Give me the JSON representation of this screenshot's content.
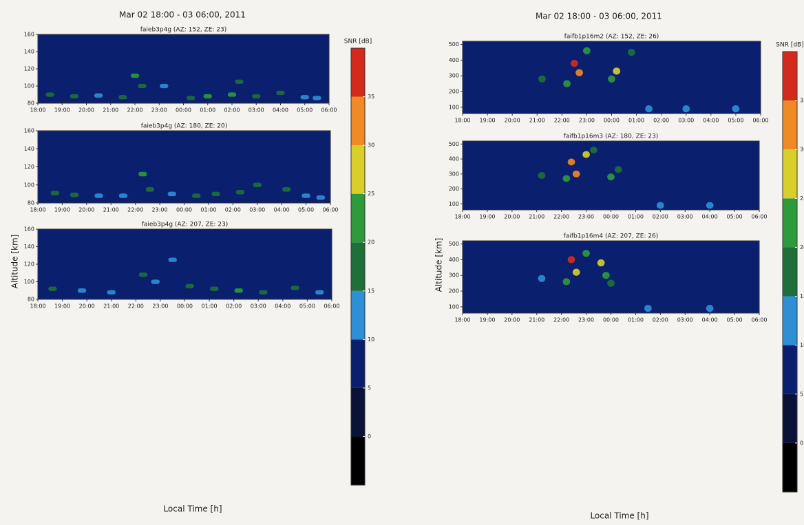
{
  "chart_data": [
    {
      "type": "heatmap",
      "title": "Mar 02 18:00 - 03 06:00, 2011",
      "xlabel": "Local Time [h]",
      "ylabel": "Altitude [km]",
      "xlim": [
        18,
        30
      ],
      "xticks": [
        {
          "value": 18,
          "label": "18:00"
        },
        {
          "value": 19,
          "label": "19:00"
        },
        {
          "value": 20,
          "label": "20:00"
        },
        {
          "value": 21,
          "label": "21:00"
        },
        {
          "value": 22,
          "label": "22:00"
        },
        {
          "value": 23,
          "label": "23:00"
        },
        {
          "value": 24,
          "label": "00:00"
        },
        {
          "value": 25,
          "label": "01:00"
        },
        {
          "value": 26,
          "label": "02:00"
        },
        {
          "value": 27,
          "label": "03:00"
        },
        {
          "value": 28,
          "label": "04:00"
        },
        {
          "value": 29,
          "label": "05:00"
        },
        {
          "value": 30,
          "label": "06:00"
        }
      ],
      "colorbar": {
        "label": "SNR [dB]",
        "levels": [
          -5,
          0,
          5,
          10,
          15,
          20,
          25,
          30,
          35,
          40
        ],
        "colors": [
          "#000000",
          "#0b1238",
          "#0a1f6e",
          "#2e8fd6",
          "#1f6f3a",
          "#2e9a3c",
          "#d8cf2a",
          "#f08a24",
          "#d42a1c"
        ],
        "ticks": [
          0,
          5,
          10,
          15,
          20,
          25,
          30,
          35
        ]
      },
      "panels": [
        {
          "subtitle": "faieb3p4g (AZ: 152, ZE: 23)",
          "ylim": [
            80,
            160
          ],
          "yticks": [
            80,
            100,
            120,
            140,
            160
          ],
          "x": [
            18.5,
            19.5,
            20.5,
            21.5,
            22.0,
            22.3,
            23.2,
            24.3,
            25.0,
            26.0,
            26.3,
            27.0,
            28.0,
            29.0,
            29.5
          ],
          "y": [
            90,
            88,
            89,
            87,
            112,
            100,
            100,
            86,
            88,
            90,
            105,
            88,
            92,
            87,
            86
          ],
          "values": [
            18,
            15,
            14,
            15,
            22,
            18,
            14,
            15,
            20,
            22,
            18,
            16,
            15,
            14,
            13
          ]
        },
        {
          "subtitle": "faieb3p4g (AZ: 180, ZE: 20)",
          "ylim": [
            80,
            160
          ],
          "yticks": [
            80,
            100,
            120,
            140,
            160
          ],
          "x": [
            18.7,
            19.5,
            20.5,
            21.5,
            22.3,
            22.6,
            23.5,
            24.5,
            25.3,
            26.3,
            27.0,
            28.2,
            29.0,
            29.6
          ],
          "y": [
            91,
            89,
            88,
            88,
            112,
            95,
            90,
            88,
            90,
            92,
            100,
            95,
            88,
            86
          ],
          "values": [
            18,
            15,
            14,
            13,
            20,
            16,
            14,
            15,
            18,
            16,
            15,
            16,
            14,
            13
          ]
        },
        {
          "subtitle": "faieb3p4g (AZ: 207, ZE: 23)",
          "ylim": [
            80,
            160
          ],
          "yticks": [
            80,
            100,
            120,
            140,
            160
          ],
          "x": [
            18.6,
            19.8,
            21.0,
            22.3,
            22.8,
            23.5,
            24.2,
            25.2,
            26.2,
            27.2,
            28.5,
            29.5
          ],
          "y": [
            92,
            90,
            88,
            108,
            100,
            125,
            95,
            92,
            90,
            88,
            93,
            88
          ],
          "values": [
            18,
            14,
            14,
            16,
            14,
            13,
            15,
            16,
            20,
            15,
            15,
            14
          ]
        }
      ]
    },
    {
      "type": "heatmap",
      "title": "Mar 02 18:00 - 03 06:00, 2011",
      "xlabel": "Local Time [h]",
      "ylabel": "Altitude [km]",
      "xlim": [
        18,
        30
      ],
      "xticks": [
        {
          "value": 18,
          "label": "18:00"
        },
        {
          "value": 19,
          "label": "19:00"
        },
        {
          "value": 20,
          "label": "20:00"
        },
        {
          "value": 21,
          "label": "21:00"
        },
        {
          "value": 22,
          "label": "22:00"
        },
        {
          "value": 23,
          "label": "23:00"
        },
        {
          "value": 24,
          "label": "00:00"
        },
        {
          "value": 25,
          "label": "01:00"
        },
        {
          "value": 26,
          "label": "02:00"
        },
        {
          "value": 27,
          "label": "03:00"
        },
        {
          "value": 28,
          "label": "04:00"
        },
        {
          "value": 29,
          "label": "05:00"
        },
        {
          "value": 30,
          "label": "06:00"
        }
      ],
      "colorbar": {
        "label": "SNR [dB]",
        "levels": [
          -5,
          0,
          5,
          10,
          15,
          20,
          25,
          30,
          35,
          40
        ],
        "colors": [
          "#000000",
          "#0b1238",
          "#0a1f6e",
          "#2e8fd6",
          "#1f6f3a",
          "#2e9a3c",
          "#d8cf2a",
          "#f08a24",
          "#d42a1c"
        ],
        "ticks": [
          0,
          5,
          10,
          15,
          20,
          25,
          30,
          35
        ]
      },
      "panels": [
        {
          "subtitle": "faifb1p16m2 (AZ: 152, ZE: 26)",
          "ylim": [
            60,
            520
          ],
          "yticks": [
            100,
            200,
            300,
            400,
            500
          ],
          "x": [
            21.2,
            22.2,
            22.5,
            22.7,
            23.0,
            24.0,
            24.2,
            24.8,
            25.5,
            27,
            29
          ],
          "y": [
            280,
            250,
            380,
            320,
            460,
            280,
            330,
            450,
            90,
            90,
            90
          ],
          "values": [
            15,
            22,
            35,
            30,
            20,
            20,
            25,
            15,
            12,
            12,
            12
          ]
        },
        {
          "subtitle": "faifb1p16m3 (AZ: 180, ZE: 23)",
          "ylim": [
            60,
            520
          ],
          "yticks": [
            100,
            200,
            300,
            400,
            500
          ],
          "x": [
            21.2,
            22.2,
            22.4,
            22.6,
            23.0,
            23.3,
            24.0,
            24.3,
            26,
            28
          ],
          "y": [
            290,
            270,
            380,
            300,
            430,
            460,
            280,
            330,
            90,
            90
          ],
          "values": [
            15,
            22,
            33,
            30,
            25,
            18,
            20,
            15,
            12,
            12
          ]
        },
        {
          "subtitle": "faifb1p16m4 (AZ: 207, ZE: 26)",
          "ylim": [
            60,
            520
          ],
          "yticks": [
            100,
            200,
            300,
            400,
            500
          ],
          "x": [
            21.2,
            22.2,
            22.4,
            22.6,
            23.0,
            23.6,
            23.8,
            24.0,
            25.5,
            28
          ],
          "y": [
            280,
            260,
            400,
            320,
            440,
            380,
            300,
            250,
            90,
            90
          ],
          "values": [
            13,
            20,
            35,
            28,
            22,
            25,
            22,
            15,
            12,
            12
          ]
        }
      ]
    }
  ]
}
